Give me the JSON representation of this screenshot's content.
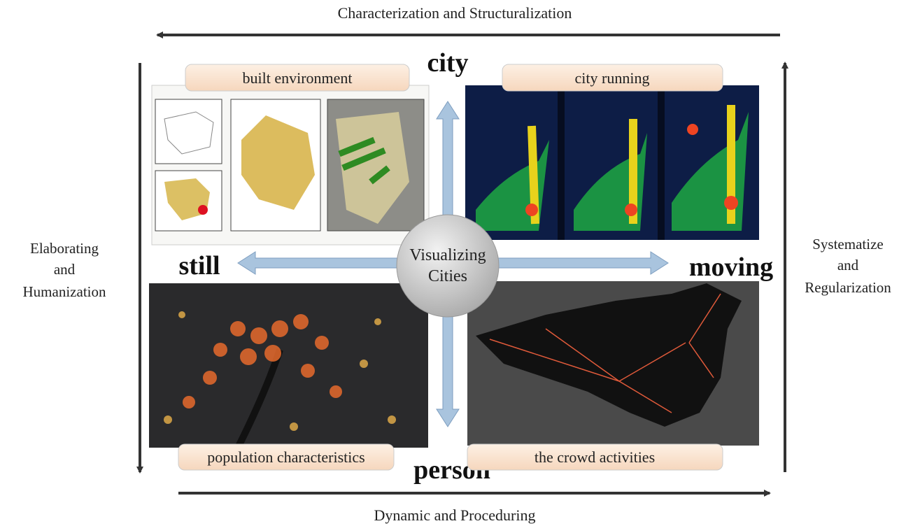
{
  "top_axis": {
    "label": "Characterization and Structuralization"
  },
  "bottom_axis": {
    "label": "Dynamic and Proceduring"
  },
  "left_axis": {
    "lines": [
      "Elaborating",
      "and",
      "Humanization"
    ]
  },
  "right_axis": {
    "lines": [
      "Systematize",
      "and",
      "Regularization"
    ]
  },
  "poles": {
    "top": "city",
    "bottom": "person",
    "left": "still",
    "right": "moving"
  },
  "center": {
    "lines": [
      "Visualizing",
      "Cities"
    ]
  },
  "panels": [
    {
      "label": "built environment"
    },
    {
      "label": "city running"
    },
    {
      "label": "population characteristics"
    },
    {
      "label": "the crowd activities"
    }
  ]
}
